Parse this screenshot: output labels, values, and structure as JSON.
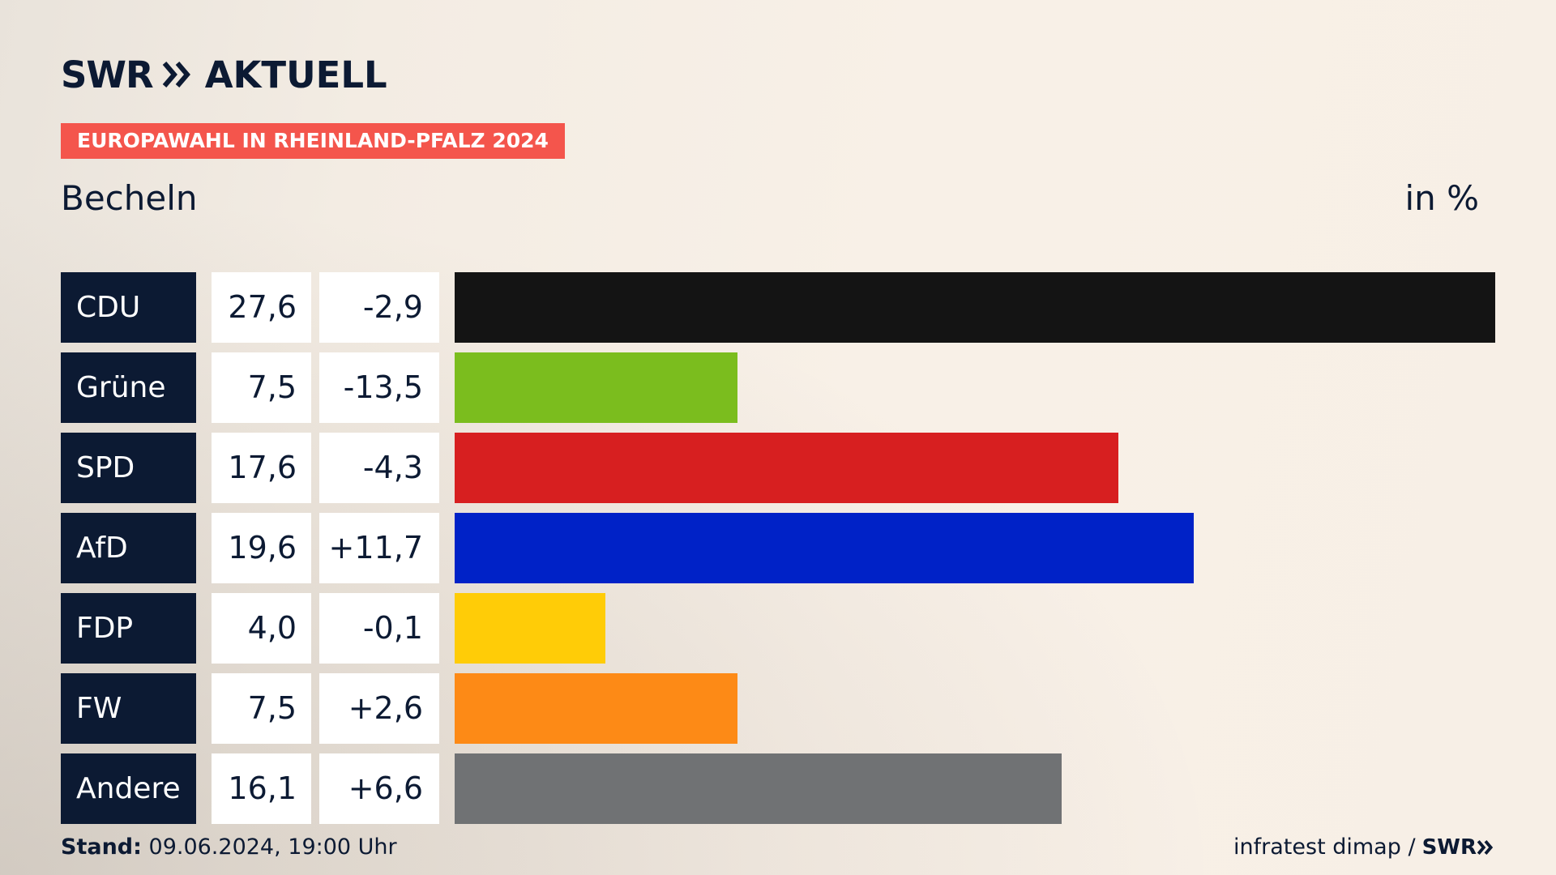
{
  "header": {
    "logo_text": "SWR",
    "logo_suffix": "AKTUELL",
    "tag": "EUROPAWAHL IN RHEINLAND-PFALZ 2024",
    "place": "Becheln",
    "unit": "in %"
  },
  "chart_data": {
    "type": "bar",
    "orientation": "horizontal",
    "title": "Becheln",
    "ylabel": "in %",
    "xlim": [
      0,
      27.6
    ],
    "categories": [
      "CDU",
      "Grüne",
      "SPD",
      "AfD",
      "FDP",
      "FW",
      "Andere"
    ],
    "values": [
      27.6,
      7.5,
      17.6,
      19.6,
      4.0,
      7.5,
      16.1
    ],
    "value_labels": [
      "27,6",
      "7,5",
      "17,6",
      "19,6",
      "4,0",
      "7,5",
      "16,1"
    ],
    "diff_labels": [
      "-2,9",
      "-13,5",
      "-4,3",
      "+11,7",
      "-0,1",
      "+2,6",
      "+6,6"
    ],
    "diffs": [
      -2.9,
      -13.5,
      -4.3,
      11.7,
      -0.1,
      2.6,
      6.6
    ],
    "colors": [
      "#141414",
      "#7bbd1e",
      "#d71f20",
      "#0022c7",
      "#ffcc07",
      "#fd8a16",
      "#707274"
    ],
    "grid": false,
    "legend": "none"
  },
  "footer": {
    "stand_label": "Stand:",
    "stand_value": "09.06.2024, 19:00 Uhr",
    "source": "infratest dimap /",
    "source_logo": "SWR"
  }
}
